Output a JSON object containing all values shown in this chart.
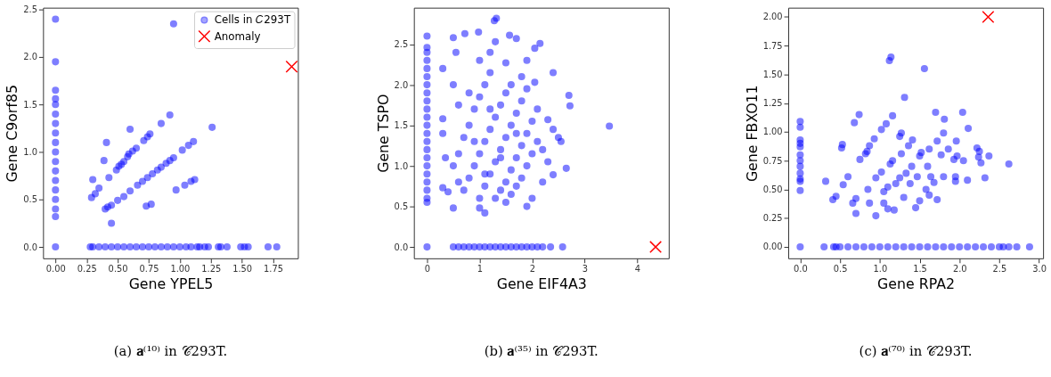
{
  "chart_data": [
    {
      "type": "scatter",
      "title": "(a) 𝐚⁽¹⁰⁾ in 𝒞293T.",
      "xlabel": "Gene YPEL5",
      "ylabel": "Gene C9orf85",
      "legend": "top right",
      "grid": false,
      "xlim": [
        -0.1,
        1.95
      ],
      "ylim": [
        -0.12,
        2.52
      ],
      "xticks": [
        {
          "value": 0,
          "label": "0.00"
        },
        0.25,
        {
          "value": 0.5,
          "label": "0.50"
        },
        0.75,
        {
          "value": 1,
          "label": "1.00"
        },
        1.25,
        {
          "value": 1.5,
          "label": "1.50"
        },
        1.75
      ],
      "yticks": [
        {
          "value": 0,
          "label": "0.0"
        },
        0.5,
        {
          "value": 1,
          "label": "1.0"
        },
        1.5,
        {
          "value": 2,
          "label": "2.0"
        },
        2.5
      ],
      "series": [
        {
          "name": "Cells in 𝐶293T",
          "color": "#0000ff",
          "marker": "circle",
          "x": [
            0,
            0,
            0,
            0,
            0,
            0,
            0,
            0,
            0,
            0,
            0,
            0,
            0,
            0,
            0,
            0,
            0,
            0,
            0.28,
            0.3,
            0.35,
            0.4,
            0.45,
            0.5,
            0.55,
            0.6,
            0.65,
            0.7,
            0.75,
            0.8,
            0.85,
            0.9,
            0.95,
            1.0,
            1.05,
            1.09,
            1.14,
            1.16,
            1.2,
            1.23,
            1.31,
            1.33,
            1.38,
            1.49,
            1.52,
            1.55,
            1.71,
            1.78,
            0.95,
            0.92,
            0.85,
            1.26,
            0.6,
            0.76,
            0.74,
            0.71,
            0.41,
            0.65,
            0.62,
            0.59,
            0.58,
            0.39,
            0.55,
            0.53,
            0.51,
            0.49,
            0.43,
            0.3,
            0.35,
            0.32,
            0.29,
            1.11,
            1.07,
            1.02,
            0.95,
            0.92,
            0.89,
            0.85,
            0.82,
            0.78,
            0.74,
            0.7,
            0.66,
            0.6,
            0.55,
            0.5,
            0.45,
            0.42,
            0.4,
            0.45,
            0.73,
            0.77,
            0.97,
            1.04,
            1.09,
            1.12
          ],
          "values": [
            0,
            0.32,
            0.4,
            0.5,
            0.6,
            0.7,
            0.8,
            0.9,
            1.0,
            1.1,
            1.2,
            1.3,
            1.4,
            1.5,
            1.56,
            1.65,
            1.95,
            2.4,
            0,
            0,
            0,
            0,
            0,
            0,
            0,
            0,
            0,
            0,
            0,
            0,
            0,
            0,
            0,
            0,
            0,
            0,
            0,
            0,
            0,
            0,
            0,
            0,
            0,
            0,
            0,
            0,
            0,
            0,
            2.35,
            1.39,
            1.3,
            1.26,
            1.24,
            1.19,
            1.16,
            1.12,
            1.1,
            1.04,
            1.01,
            0.98,
            0.95,
            0.91,
            0.9,
            0.87,
            0.85,
            0.81,
            0.73,
            0.71,
            0.62,
            0.56,
            0.52,
            1.11,
            1.07,
            1.02,
            0.94,
            0.91,
            0.88,
            0.84,
            0.81,
            0.77,
            0.73,
            0.69,
            0.65,
            0.59,
            0.53,
            0.49,
            0.44,
            0.42,
            0.4,
            0.25,
            0.43,
            0.45,
            0.6,
            0.65,
            0.69,
            0.71
          ]
        },
        {
          "name": "Anomaly",
          "color": "#ff0000",
          "marker": "cross",
          "x": [
            1.9
          ],
          "values": [
            1.9
          ]
        }
      ]
    },
    {
      "type": "scatter",
      "title": "(b) 𝐚⁽³⁵⁾ in 𝒞293T.",
      "xlabel": "Gene EIF4A3",
      "ylabel": "Gene TSPO",
      "grid": false,
      "xlim": [
        -0.25,
        4.6
      ],
      "ylim": [
        -0.14,
        2.95
      ],
      "xticks": [
        0,
        1,
        2,
        3,
        4
      ],
      "yticks": [
        {
          "value": 0,
          "label": "0.0"
        },
        0.5,
        {
          "value": 1,
          "label": "1.0"
        },
        1.5,
        {
          "value": 2,
          "label": "2.0"
        },
        2.5
      ],
      "series": [
        {
          "color": "#0000ff",
          "marker": "circle",
          "x": [
            0,
            0,
            0,
            0,
            0,
            0,
            0,
            0,
            0,
            0,
            0,
            0,
            0,
            0,
            0,
            0,
            0,
            0,
            0,
            0,
            0,
            0,
            0,
            0.5,
            0.6,
            0.7,
            0.8,
            0.9,
            1.0,
            1.1,
            1.2,
            1.3,
            1.4,
            1.5,
            1.6,
            1.7,
            1.8,
            1.9,
            2.0,
            2.1,
            2.2,
            2.35,
            2.58,
            0.5,
            0.6,
            0.7,
            0.8,
            0.9,
            1.0,
            1.1,
            1.2,
            0.7,
            0.8,
            0.9,
            1.0,
            1.1,
            1.2,
            1.3,
            1.4,
            1.5,
            1.6,
            1.0,
            1.1,
            1.2,
            1.3,
            1.4,
            1.5,
            1.6,
            1.7,
            1.8,
            1.9,
            1.3,
            1.4,
            1.5,
            1.6,
            1.7,
            1.8,
            1.9,
            2.0,
            2.1,
            1.5,
            1.6,
            1.7,
            1.8,
            1.9,
            2.0,
            2.1,
            1.32,
            1.28,
            0.98,
            0.72,
            1.57,
            0.5,
            1.7,
            2.15,
            1.3,
            2.05,
            0.55,
            1.9,
            0.3,
            2.4,
            0.5,
            2.05,
            0.3,
            0.3,
            0.35,
            0.3,
            0.4,
            0.5,
            1.1,
            1.0,
            2.7,
            2.72,
            3.47,
            2.5,
            2.55,
            2.65,
            2.4,
            2.3,
            2.2,
            2.0,
            1.9,
            2.3,
            2.4,
            0.6,
            0.8,
            1.0,
            1.2,
            1.5,
            1.8,
            1.7,
            1.2,
            0.9,
            2.2,
            1.4,
            1.1,
            0.6
          ],
          "values": [
            0,
            0.55,
            0.6,
            0.7,
            0.8,
            0.9,
            1.0,
            1.1,
            1.2,
            1.3,
            1.4,
            1.5,
            1.6,
            1.7,
            1.8,
            1.9,
            2.0,
            2.1,
            2.2,
            2.3,
            2.4,
            2.46,
            2.6,
            0,
            0,
            0,
            0,
            0,
            0,
            0,
            0,
            0,
            0,
            0,
            0,
            0,
            0,
            0,
            0,
            0,
            0,
            0,
            0,
            1.0,
            1.15,
            1.35,
            1.5,
            1.7,
            1.85,
            2.0,
            2.15,
            0.7,
            0.85,
            1.0,
            1.15,
            1.3,
            1.45,
            1.6,
            1.75,
            1.9,
            2.0,
            0.6,
            0.75,
            0.9,
            1.05,
            1.2,
            1.35,
            1.5,
            1.65,
            1.8,
            1.95,
            0.6,
            0.7,
            0.8,
            0.95,
            1.1,
            1.25,
            1.4,
            1.55,
            1.7,
            0.55,
            0.65,
            0.75,
            0.85,
            1.0,
            1.15,
            1.3,
            2.82,
            2.79,
            2.65,
            2.63,
            2.61,
            2.58,
            2.57,
            2.51,
            2.53,
            2.45,
            2.4,
            2.3,
            2.2,
            2.15,
            2.0,
            2.03,
            1.58,
            1.4,
            1.1,
            0.73,
            0.68,
            0.48,
            0.42,
            0.48,
            1.87,
            1.74,
            1.49,
            1.35,
            1.3,
            0.97,
            0.89,
            1.05,
            0.8,
            0.6,
            0.5,
            1.57,
            1.45,
            1.75,
            1.9,
            2.3,
            2.4,
            2.27,
            2.1,
            1.4,
            1.7,
            1.3,
            1.2,
            1.1,
            0.9,
            0.8
          ]
        },
        {
          "color": "#ff0000",
          "marker": "cross",
          "x": [
            4.35
          ],
          "values": [
            0
          ]
        }
      ]
    },
    {
      "type": "scatter",
      "title": "(c) 𝐚⁽⁷⁰⁾ in 𝒞293T.",
      "xlabel": "Gene RPA2",
      "ylabel": "Gene FBXO11",
      "grid": false,
      "xlim": [
        -0.15,
        3.05
      ],
      "ylim": [
        -0.1,
        2.08
      ],
      "xticks": [
        {
          "value": 0,
          "label": "0.0"
        },
        0.5,
        {
          "value": 1,
          "label": "1.0"
        },
        1.5,
        {
          "value": 2,
          "label": "2.0"
        },
        2.5,
        {
          "value": 3,
          "label": "3.0"
        }
      ],
      "yticks": [
        {
          "value": 0,
          "label": "0.00"
        },
        0.25,
        {
          "value": 0.5,
          "label": "0.50"
        },
        0.75,
        {
          "value": 1,
          "label": "1.00"
        },
        1.25,
        {
          "value": 1.5,
          "label": "1.50"
        },
        1.75,
        {
          "value": 2,
          "label": "2.00"
        }
      ],
      "series": [
        {
          "color": "#0000ff",
          "marker": "circle",
          "x": [
            0,
            0,
            0,
            0,
            0,
            0,
            0,
            0,
            0,
            0,
            0,
            0,
            0,
            0.3,
            0.42,
            0.45,
            0.5,
            0.6,
            0.7,
            0.8,
            0.9,
            1.0,
            1.1,
            1.2,
            1.3,
            1.4,
            1.5,
            1.6,
            1.7,
            1.8,
            1.9,
            2.0,
            2.1,
            2.2,
            2.3,
            2.4,
            2.5,
            2.55,
            2.62,
            2.72,
            2.88,
            1.12,
            1.14,
            1.56,
            1.31,
            0.74,
            1.16,
            1.7,
            2.04,
            0.68,
            1.08,
            1.02,
            1.81,
            2.11,
            1.27,
            1.25,
            1.8,
            0.93,
            1.41,
            1.72,
            1.96,
            0.53,
            0.52,
            0.87,
            1.36,
            2.22,
            2.25,
            1.86,
            1.62,
            0.84,
            0.82,
            1.52,
            1.27,
            1.77,
            2.37,
            1.97,
            2.24,
            0.75,
            1.16,
            1.13,
            1.5,
            1.93,
            2.05,
            2.27,
            2.62,
            1.6,
            1.4,
            1.02,
            0.95,
            0.6,
            0.54,
            0.45,
            0.41,
            0.32,
            1.25,
            1.33,
            1.47,
            1.64,
            1.8,
            1.95,
            2.1,
            2.32,
            1.05,
            1.1,
            1.2,
            1.38,
            1.58,
            1.68,
            0.85,
            0.7,
            0.66,
            0.7,
            0.95,
            1.1,
            1.18,
            1.3,
            1.45,
            1.62,
            1.72,
            1.5,
            1.05,
            0.87,
            1.95
          ],
          "values": [
            0,
            0.49,
            0.57,
            0.59,
            0.64,
            0.7,
            0.75,
            0.8,
            0.87,
            0.9,
            0.93,
            1.04,
            1.09,
            0,
            0,
            0,
            0,
            0,
            0,
            0,
            0,
            0,
            0,
            0,
            0,
            0,
            0,
            0,
            0,
            0,
            0,
            0,
            0,
            0,
            0,
            0,
            0,
            0,
            0,
            0,
            0,
            1.62,
            1.65,
            1.55,
            1.3,
            1.15,
            1.14,
            1.17,
            1.17,
            1.08,
            1.07,
            1.02,
            1.11,
            1.03,
            0.99,
            0.96,
            0.99,
            0.94,
            0.93,
            0.92,
            0.92,
            0.89,
            0.86,
            0.88,
            0.88,
            0.86,
            0.83,
            0.85,
            0.85,
            0.83,
            0.81,
            0.82,
            0.81,
            0.8,
            0.79,
            0.79,
            0.78,
            0.76,
            0.75,
            0.72,
            0.79,
            0.76,
            0.75,
            0.73,
            0.72,
            0.7,
            0.7,
            0.65,
            0.6,
            0.61,
            0.54,
            0.44,
            0.41,
            0.57,
            0.6,
            0.64,
            0.61,
            0.61,
            0.61,
            0.61,
            0.58,
            0.6,
            0.48,
            0.52,
            0.55,
            0.55,
            0.5,
            0.56,
            0.5,
            0.42,
            0.38,
            0.29,
            0.27,
            0.33,
            0.32,
            0.43,
            0.34,
            0.45,
            0.41,
            0.4,
            0.38,
            0.38,
            0.57
          ]
        },
        {
          "color": "#ff0000",
          "marker": "cross",
          "x": [
            2.36
          ],
          "values": [
            2.0
          ]
        }
      ]
    }
  ]
}
